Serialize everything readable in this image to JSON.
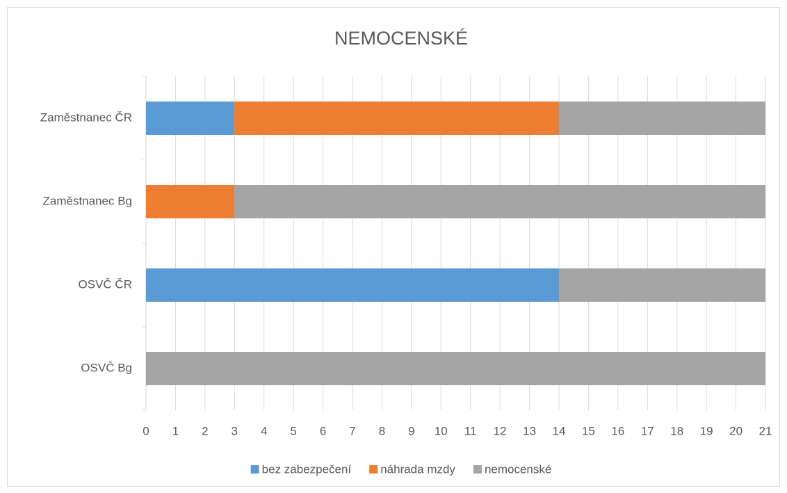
{
  "chart_data": {
    "type": "stacked_barh",
    "title": "NEMOCENSKÉ",
    "categories": [
      "Zaměstnanec ČR",
      "Zaměstnanec Bg",
      "OSVČ ČR",
      "OSVČ Bg"
    ],
    "series": [
      {
        "name": "bez zabezpečení",
        "color": "#5b9bd5",
        "values": [
          3,
          0,
          14,
          0
        ]
      },
      {
        "name": "náhrada mzdy",
        "color": "#ed7d31",
        "values": [
          11,
          3,
          0,
          0
        ]
      },
      {
        "name": "nemocenské",
        "color": "#a5a5a5",
        "values": [
          7,
          18,
          7,
          21
        ]
      }
    ],
    "xlim": [
      0,
      21
    ],
    "xticks": [
      0,
      1,
      2,
      3,
      4,
      5,
      6,
      7,
      8,
      9,
      10,
      11,
      12,
      13,
      14,
      15,
      16,
      17,
      18,
      19,
      20,
      21
    ],
    "grid": true,
    "legend": "bottom"
  }
}
